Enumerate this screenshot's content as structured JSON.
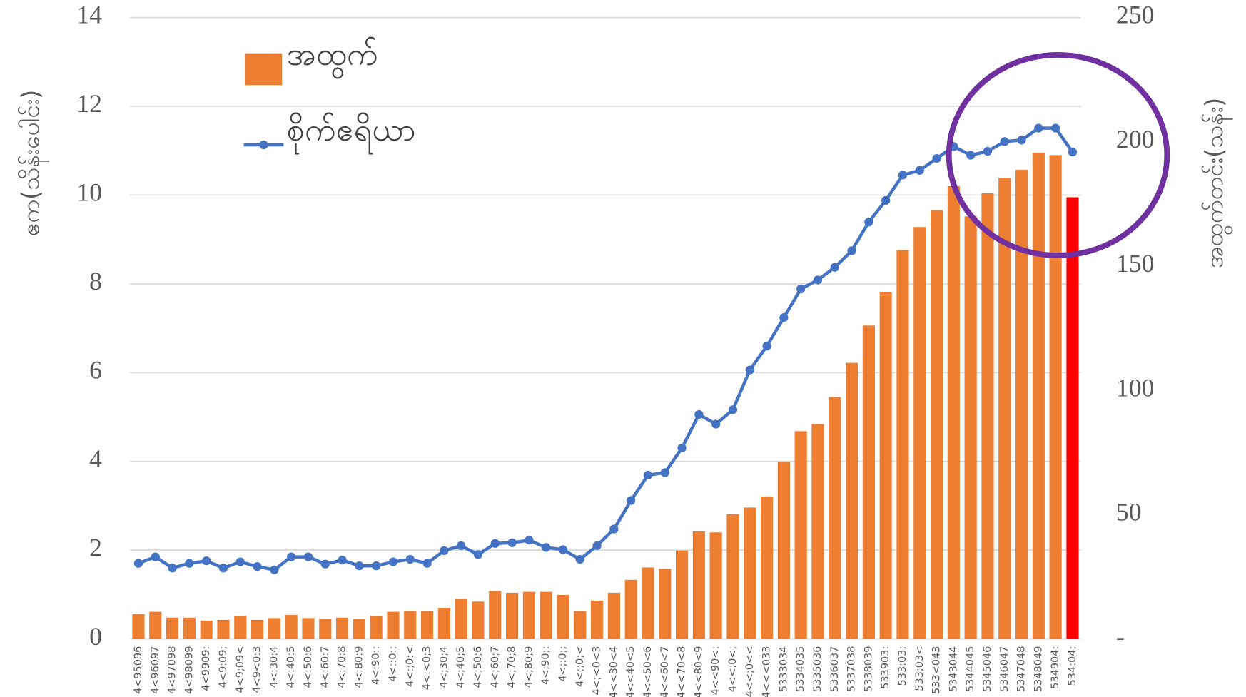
{
  "chart_data": {
    "type": "bar_line",
    "categories": [
      "4<95096",
      "4<96097",
      "4<97098",
      "4<98099",
      "4<9909:",
      "4<9:09;",
      "4<9;09<",
      "4<9<0:3",
      "4<:30:4",
      "4<:40:5",
      "4<:50:6",
      "4<:60:7",
      "4<:70:8",
      "4<:80:9",
      "4<:90::",
      "4<::0:;",
      "4<:;0:<",
      "4<:<0;3",
      "4<;30;4",
      "4<;40;5",
      "4<;50;6",
      "4<;60;7",
      "4<;70;8",
      "4<;80;9",
      "4<;90;:",
      "4<;:0;;",
      "4<;;0;<",
      "4<;<0<3",
      "4<<30<4",
      "4<<40<5",
      "4<<50<6",
      "4<<60<7",
      "4<<70<8",
      "4<<80<9",
      "4<<90<:",
      "4<<:0<;",
      "4<<;0<<",
      "4<<<033",
      "5333034",
      "5334035",
      "5335036",
      "5336037",
      "5337038",
      "5338039",
      "533903:",
      "533:03;",
      "533;03<",
      "533<043",
      "5343044",
      "5344045",
      "5345046",
      "5346047",
      "5347048",
      "5348049",
      "534904:",
      "534:04;"
    ],
    "series": [
      {
        "name": "အထွက်",
        "type": "bar",
        "color": "#ED7D31",
        "colors": [
          "#ED7D31",
          "#ED7D31",
          "#ED7D31",
          "#ED7D31",
          "#ED7D31",
          "#ED7D31",
          "#ED7D31",
          "#ED7D31",
          "#ED7D31",
          "#ED7D31",
          "#ED7D31",
          "#ED7D31",
          "#ED7D31",
          "#ED7D31",
          "#ED7D31",
          "#ED7D31",
          "#ED7D31",
          "#ED7D31",
          "#ED7D31",
          "#ED7D31",
          "#ED7D31",
          "#ED7D31",
          "#ED7D31",
          "#ED7D31",
          "#ED7D31",
          "#ED7D31",
          "#ED7D31",
          "#ED7D31",
          "#ED7D31",
          "#ED7D31",
          "#ED7D31",
          "#ED7D31",
          "#ED7D31",
          "#ED7D31",
          "#ED7D31",
          "#ED7D31",
          "#ED7D31",
          "#ED7D31",
          "#ED7D31",
          "#ED7D31",
          "#ED7D31",
          "#ED7D31",
          "#ED7D31",
          "#ED7D31",
          "#ED7D31",
          "#ED7D31",
          "#ED7D31",
          "#ED7D31",
          "#ED7D31",
          "#ED7D31",
          "#ED7D31",
          "#ED7D31",
          "#ED7D31",
          "#ED7D31",
          "#ED7D31",
          "#FF0000"
        ],
        "values": [
          0.56,
          0.61,
          0.48,
          0.48,
          0.41,
          0.43,
          0.52,
          0.43,
          0.47,
          0.54,
          0.47,
          0.45,
          0.48,
          0.45,
          0.52,
          0.61,
          0.63,
          0.63,
          0.7,
          0.9,
          0.84,
          1.08,
          1.04,
          1.06,
          1.06,
          0.99,
          0.63,
          0.86,
          1.04,
          1.33,
          1.61,
          1.58,
          1.99,
          2.42,
          2.4,
          2.81,
          2.96,
          3.21,
          3.98,
          4.68,
          4.84,
          5.45,
          6.22,
          7.06,
          7.81,
          8.76,
          9.28,
          9.66,
          10.2,
          9.52,
          10.04,
          10.39,
          10.57,
          10.95,
          10.9,
          9.95
        ]
      },
      {
        "name": "စိုက်ဧရိယာ",
        "type": "line",
        "axis": "y2",
        "color": "#4472C4",
        "values": [
          30.4,
          33,
          28.5,
          30.4,
          31.4,
          28.5,
          31,
          29.1,
          27.8,
          33,
          33,
          30.1,
          31.7,
          29.4,
          29.4,
          31,
          32,
          30.4,
          35.5,
          37.5,
          33.9,
          38.4,
          38.7,
          39.7,
          36.8,
          35.9,
          32,
          37.5,
          44.2,
          55.7,
          65.9,
          66.9,
          76.8,
          90.3,
          86.4,
          92.2,
          108.2,
          117.8,
          129.3,
          140.8,
          144.4,
          149.5,
          156.2,
          167.7,
          176.4,
          186.6,
          188.5,
          193.3,
          198.1,
          194.6,
          196.2,
          200.1,
          200.7,
          205.5,
          205.5,
          195.9
        ]
      }
    ],
    "ylabel": "ဧက(သိန်းပေါင်း)",
    "y2label": "အထွက်တင်း(သန်း)",
    "ylim": [
      0,
      14
    ],
    "yticks": [
      0,
      2,
      4,
      6,
      8,
      10,
      12,
      14
    ],
    "y2lim": [
      0,
      250
    ],
    "y2ticks": [
      {
        "value": 0,
        "label": "-"
      },
      50,
      100,
      150,
      200,
      250
    ],
    "grid": true,
    "legend": "upper left"
  }
}
